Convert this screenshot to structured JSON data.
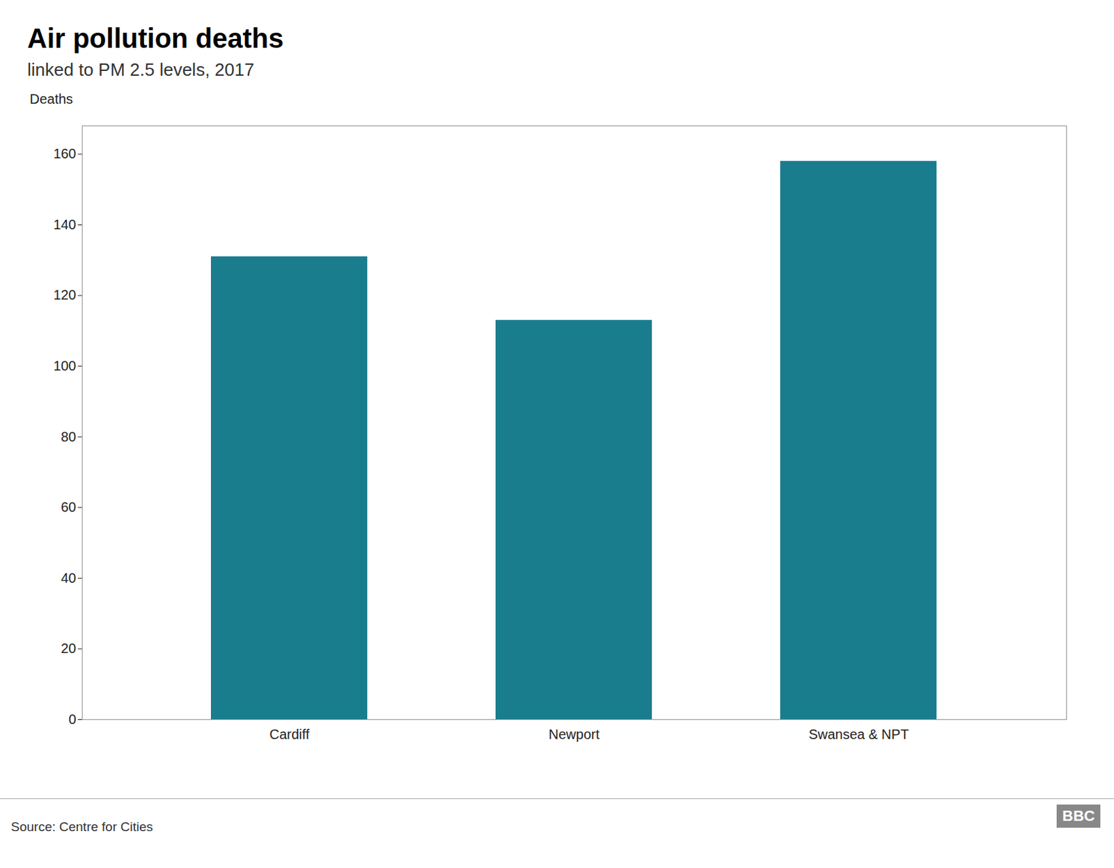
{
  "chart_data": {
    "type": "bar",
    "title": "Air pollution deaths",
    "subtitle": "linked to PM 2.5 levels, 2017",
    "ylabel": "Deaths",
    "categories": [
      "Cardiff",
      "Newport",
      "Swansea & NPT"
    ],
    "values": [
      131,
      113,
      158
    ],
    "color": "#1a7d8e",
    "ylim": [
      0,
      168
    ],
    "yticks": [
      0,
      20,
      40,
      60,
      80,
      100,
      120,
      140,
      160
    ],
    "grid": false,
    "caption": "Source: Centre for Cities",
    "logo_text": "BBC"
  }
}
